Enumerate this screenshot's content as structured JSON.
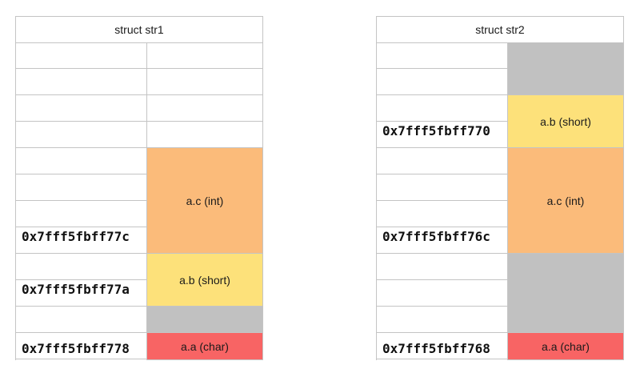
{
  "struct1": {
    "title": "struct str1",
    "addresses": [
      "0x7fff5fbff77c",
      "0x7fff5fbff77a",
      "0x7fff5fbff778"
    ],
    "fields": [
      {
        "label": "a.c (int)",
        "kind": "int",
        "bytes": 4,
        "color": "#fbbb7a"
      },
      {
        "label": "a.b (short)",
        "kind": "short",
        "bytes": 2,
        "color": "#fde17a"
      },
      {
        "label": "",
        "kind": "padding",
        "bytes": 1,
        "color": "#c1c1c1"
      },
      {
        "label": "a.a (char)",
        "kind": "char",
        "bytes": 1,
        "color": "#f86464"
      }
    ]
  },
  "struct2": {
    "title": "struct str2",
    "addresses": [
      "0x7fff5fbff770",
      "0x7fff5fbff76c",
      "0x7fff5fbff768"
    ],
    "fields": [
      {
        "label": "",
        "kind": "padding",
        "bytes": 2,
        "color": "#c1c1c1"
      },
      {
        "label": "a.b (short)",
        "kind": "short",
        "bytes": 2,
        "color": "#fde17a"
      },
      {
        "label": "a.c (int)",
        "kind": "int",
        "bytes": 4,
        "color": "#fbbb7a"
      },
      {
        "label": "",
        "kind": "padding",
        "bytes": 3,
        "color": "#c1c1c1"
      },
      {
        "label": "a.a (char)",
        "kind": "char",
        "bytes": 1,
        "color": "#f86464"
      }
    ]
  }
}
